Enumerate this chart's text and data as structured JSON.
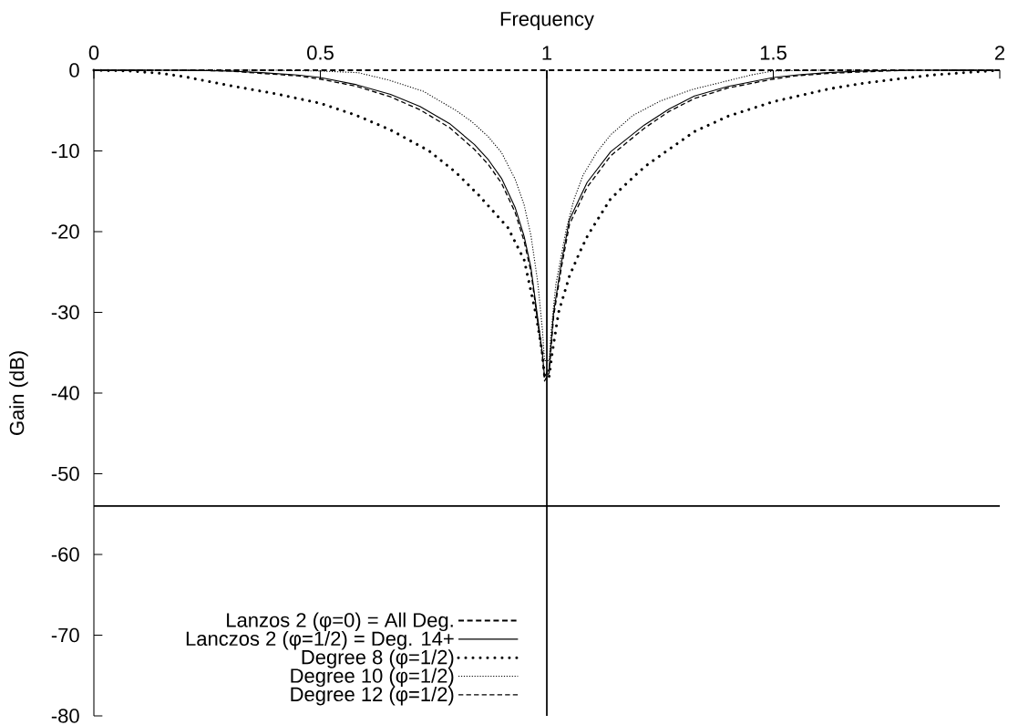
{
  "chart_data": {
    "type": "line",
    "xlabel": "Frequency",
    "ylabel": "Gain (dB)",
    "xlim": [
      0,
      2
    ],
    "ylim": [
      -80,
      0
    ],
    "xticks": [
      0,
      0.5,
      1,
      1.5,
      2
    ],
    "yticks": [
      -80,
      -70,
      -60,
      -50,
      -40,
      -30,
      -20,
      -10,
      0
    ],
    "legend": "bottom left",
    "ref_lines": [
      {
        "axis": "x",
        "value": 1,
        "color": "#000000"
      },
      {
        "axis": "y",
        "value": -54,
        "color": "#000000"
      }
    ],
    "series": [
      {
        "name": "Lanzos 2 (φ=0) = All Deg.",
        "color": "#000000",
        "line_style": "dashed",
        "x": [
          0,
          2
        ],
        "values": [
          0,
          0
        ]
      },
      {
        "name": "Lanczos 2 (φ=1/2) = Deg. 14+",
        "color": "#000000",
        "line_style": "solid",
        "x": [
          0,
          0.2,
          0.3,
          0.37,
          0.45,
          0.5,
          0.58,
          0.655,
          0.72,
          0.785,
          0.84,
          0.871,
          0.9,
          0.93,
          0.95,
          0.965,
          0.98,
          0.99,
          0.995,
          1.005,
          1.015,
          1.032,
          1.05,
          1.089,
          1.141,
          1.215,
          1.27,
          1.326,
          1.4,
          1.5,
          1.55,
          1.62,
          1.7,
          1.8,
          2
        ],
        "values": [
          0,
          0,
          -0.1,
          -0.3,
          -0.6,
          -0.9,
          -1.8,
          -3.0,
          -4.5,
          -6.6,
          -9.2,
          -11.1,
          -13.4,
          -17.0,
          -20.6,
          -24.5,
          -30.8,
          -35,
          -38,
          -37,
          -30,
          -23.9,
          -18.5,
          -13.9,
          -10.1,
          -6.8,
          -4.8,
          -3.2,
          -2.0,
          -0.9,
          -0.6,
          -0.3,
          -0.1,
          0,
          0
        ]
      },
      {
        "name": "Degree 8 (φ=1/2)",
        "color": "#000000",
        "line_style": "dotted",
        "x": [
          0,
          0.08,
          0.15,
          0.2,
          0.3,
          0.4,
          0.5,
          0.58,
          0.655,
          0.74,
          0.8,
          0.85,
          0.914,
          0.95,
          0.975,
          0.99,
          0.995,
          1.005,
          1.012,
          1.026,
          1.05,
          1.073,
          1.09,
          1.14,
          1.167,
          1.215,
          1.27,
          1.326,
          1.4,
          1.5,
          1.624,
          1.7,
          1.773,
          1.85,
          1.923,
          2
        ],
        "values": [
          0,
          -0.1,
          -0.4,
          -0.8,
          -1.9,
          -2.9,
          -4.1,
          -5.6,
          -7.4,
          -10.0,
          -12.7,
          -15.5,
          -19.5,
          -23.5,
          -30,
          -35,
          -38,
          -38,
          -35,
          -30,
          -25.5,
          -22.5,
          -20.5,
          -16,
          -14.5,
          -12,
          -9.8,
          -7.6,
          -5.7,
          -3.9,
          -2.3,
          -1.6,
          -1.1,
          -0.6,
          -0.3,
          0
        ]
      },
      {
        "name": "Degree 10 (φ=1/2)",
        "color": "#000000",
        "line_style": "dotted",
        "x": [
          0,
          0.4,
          0.5,
          0.583,
          0.65,
          0.727,
          0.8,
          0.835,
          0.87,
          0.9,
          0.93,
          0.95,
          0.965,
          0.98,
          0.99,
          0.995,
          1.005,
          1.01,
          1.02,
          1.043,
          1.06,
          1.08,
          1.11,
          1.141,
          1.19,
          1.251,
          1.32,
          1.4,
          1.45,
          1.5,
          1.6,
          2
        ],
        "values": [
          0,
          0,
          -0.1,
          -0.3,
          -1.2,
          -2.6,
          -5.0,
          -6.4,
          -8.2,
          -10.2,
          -13.5,
          -16.7,
          -20.5,
          -26.3,
          -32,
          -36,
          -36,
          -32,
          -26.5,
          -19.7,
          -16,
          -13,
          -10.2,
          -8.0,
          -5.6,
          -3.8,
          -2.4,
          -1.3,
          -0.6,
          -0.1,
          0,
          0
        ]
      },
      {
        "name": "Degree 12 (φ=1/2)",
        "color": "#000000",
        "line_style": "dashed",
        "x": [
          0,
          0.2,
          0.3,
          0.37,
          0.45,
          0.5,
          0.58,
          0.655,
          0.72,
          0.785,
          0.84,
          0.871,
          0.9,
          0.93,
          0.95,
          0.965,
          0.98,
          0.99,
          0.995,
          1.005,
          1.015,
          1.032,
          1.05,
          1.089,
          1.141,
          1.215,
          1.27,
          1.326,
          1.4,
          1.5,
          1.55,
          1.62,
          1.7,
          1.8,
          2
        ],
        "values": [
          0,
          0,
          -0.1,
          -0.4,
          -0.7,
          -1.1,
          -2.0,
          -3.3,
          -4.9,
          -7.1,
          -9.8,
          -11.7,
          -14.0,
          -17.6,
          -21.2,
          -25,
          -31.2,
          -35.5,
          -38.5,
          -37.5,
          -30.5,
          -24.5,
          -19.1,
          -14.5,
          -10.6,
          -7.2,
          -5.1,
          -3.5,
          -2.2,
          -1.1,
          -0.7,
          -0.4,
          -0.2,
          0,
          0
        ]
      }
    ]
  }
}
